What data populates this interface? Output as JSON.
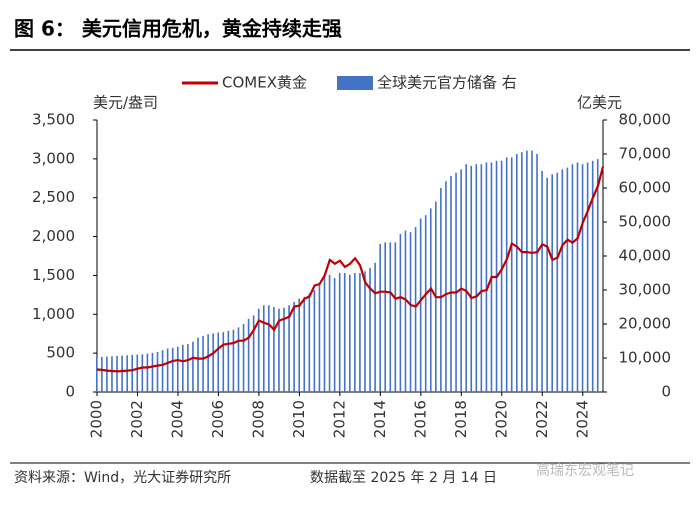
{
  "header": {
    "title": "图 6：  美元信用危机，黄金持续走强"
  },
  "chart_data": {
    "type": "bar-line",
    "y_label": "美元/盎司",
    "y2_label": "亿美元",
    "x": [
      2000,
      2000.25,
      2000.5,
      2000.75,
      2001,
      2001.25,
      2001.5,
      2001.75,
      2002,
      2002.25,
      2002.5,
      2002.75,
      2003,
      2003.25,
      2003.5,
      2003.75,
      2004,
      2004.25,
      2004.5,
      2004.75,
      2005,
      2005.25,
      2005.5,
      2005.75,
      2006,
      2006.25,
      2006.5,
      2006.75,
      2007,
      2007.25,
      2007.5,
      2007.75,
      2008,
      2008.25,
      2008.5,
      2008.75,
      2009,
      2009.25,
      2009.5,
      2009.75,
      2010,
      2010.25,
      2010.5,
      2010.75,
      2011,
      2011.25,
      2011.5,
      2011.75,
      2012,
      2012.25,
      2012.5,
      2012.75,
      2013,
      2013.25,
      2013.5,
      2013.75,
      2014,
      2014.25,
      2014.5,
      2014.75,
      2015,
      2015.25,
      2015.5,
      2015.75,
      2016,
      2016.25,
      2016.5,
      2016.75,
      2017,
      2017.25,
      2017.5,
      2017.75,
      2018,
      2018.25,
      2018.5,
      2018.75,
      2019,
      2019.25,
      2019.5,
      2019.75,
      2020,
      2020.25,
      2020.5,
      2020.75,
      2021,
      2021.25,
      2021.5,
      2021.75,
      2022,
      2022.25,
      2022.5,
      2022.75,
      2023,
      2023.25,
      2023.5,
      2023.75,
      2024,
      2024.25,
      2024.5,
      2024.75,
      2025
    ],
    "series": [
      {
        "name": "COMEX黄金",
        "type": "line",
        "color": "#c00000",
        "values": [
          290,
          285,
          275,
          270,
          265,
          270,
          275,
          280,
          300,
          315,
          315,
          330,
          340,
          350,
          375,
          400,
          410,
          395,
          410,
          440,
          430,
          430,
          460,
          500,
          560,
          610,
          620,
          630,
          660,
          660,
          700,
          800,
          920,
          890,
          870,
          800,
          920,
          940,
          970,
          1100,
          1110,
          1200,
          1230,
          1370,
          1390,
          1500,
          1700,
          1650,
          1690,
          1610,
          1650,
          1720,
          1630,
          1410,
          1330,
          1270,
          1290,
          1290,
          1280,
          1200,
          1220,
          1190,
          1120,
          1100,
          1180,
          1260,
          1330,
          1220,
          1220,
          1260,
          1280,
          1280,
          1330,
          1300,
          1210,
          1230,
          1300,
          1310,
          1480,
          1480,
          1580,
          1710,
          1910,
          1870,
          1800,
          1800,
          1790,
          1800,
          1900,
          1870,
          1700,
          1730,
          1890,
          1960,
          1920,
          1980,
          2180,
          2330,
          2500,
          2650,
          2900
        ]
      },
      {
        "name": "全球美元官方储备 右",
        "type": "bar",
        "axis": "y2",
        "color": "#4472c4",
        "values": [
          10200,
          10300,
          10400,
          10500,
          10600,
          10700,
          10800,
          10900,
          11000,
          11100,
          11300,
          11500,
          11800,
          12300,
          12800,
          13000,
          13300,
          13900,
          14100,
          14800,
          16000,
          16500,
          17000,
          17200,
          17500,
          17600,
          18000,
          18300,
          19000,
          20000,
          21500,
          22500,
          24500,
          25500,
          25500,
          25000,
          24500,
          24800,
          25500,
          26500,
          27500,
          28000,
          29000,
          30000,
          32000,
          34000,
          34500,
          33500,
          35000,
          35000,
          34500,
          35000,
          35000,
          35500,
          36500,
          38000,
          43500,
          44000,
          44000,
          44000,
          46500,
          47500,
          47000,
          48500,
          51000,
          52000,
          54000,
          56000,
          60000,
          62000,
          63500,
          64500,
          65500,
          67000,
          66500,
          67000,
          67000,
          67500,
          67500,
          68000,
          68000,
          69000,
          69000,
          70000,
          70500,
          71000,
          71000,
          70000,
          65000,
          63000,
          64000,
          64500,
          65500,
          66000,
          67000,
          67500,
          67000,
          67500,
          68000,
          68500,
          null
        ]
      }
    ],
    "xlim": [
      2000,
      2025
    ],
    "xticks": [
      2000,
      2002,
      2004,
      2006,
      2008,
      2010,
      2012,
      2014,
      2016,
      2018,
      2020,
      2022,
      2024
    ],
    "ylim": [
      0,
      3500
    ],
    "yticks": [
      0,
      500,
      {
        "value": 1000,
        "label": "1,000"
      },
      {
        "value": 1500,
        "label": "1,500"
      },
      {
        "value": 2000,
        "label": "2,000"
      },
      {
        "value": 2500,
        "label": "2,500"
      },
      {
        "value": 3000,
        "label": "3,000"
      },
      {
        "value": 3500,
        "label": "3,500"
      }
    ],
    "y2lim": [
      0,
      80000
    ],
    "y2ticks": [
      0,
      {
        "value": 10000,
        "label": "10,000"
      },
      {
        "value": 20000,
        "label": "20,000"
      },
      {
        "value": 30000,
        "label": "30,000"
      },
      {
        "value": 40000,
        "label": "40,000"
      },
      {
        "value": 50000,
        "label": "50,000"
      },
      {
        "value": 60000,
        "label": "60,000"
      },
      {
        "value": 70000,
        "label": "70,000"
      },
      {
        "value": 80000,
        "label": "80,000"
      }
    ]
  },
  "footer": {
    "source": "资料来源：Wind，光大证券研究所",
    "date": "数据截至 2025 年 2 月 14 日",
    "watermark": "高瑞东宏观笔记"
  }
}
